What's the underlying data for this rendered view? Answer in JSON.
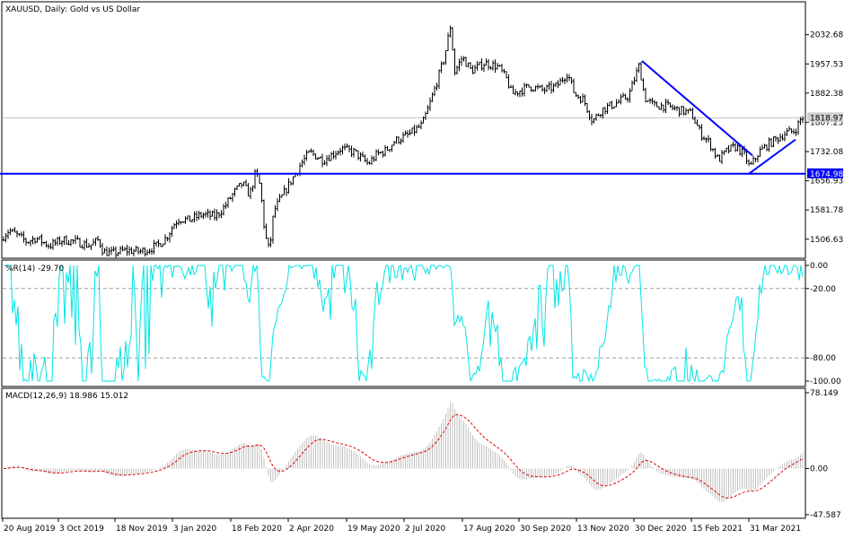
{
  "chart_data": [
    {
      "type": "bar",
      "subtype": "ohlc",
      "title": "XAUUSD, Daily:  Gold vs US Dollar",
      "ylim": [
        1460,
        2115
      ],
      "price_ticks": [
        "2032.68",
        "1957.53",
        "1882.38",
        "1807.23",
        "1732.08",
        "1656.93",
        "1581.78",
        "1506.63"
      ],
      "current_price": "1818.97",
      "support_level": "1674.98",
      "x_labels": [
        "20 Aug 2019",
        "3 Oct 2019",
        "18 Nov 2019",
        "3 Jan 2020",
        "18 Feb 2020",
        "2 Apr 2020",
        "19 May 2020",
        "2 Jul 2020",
        "17 Aug 2020",
        "30 Sep 2020",
        "13 Nov 2020",
        "30 Dec 2020",
        "15 Feb 2021",
        "31 Mar 2021"
      ],
      "close_path": [
        [
          0,
          1505
        ],
        [
          10,
          1530
        ],
        [
          20,
          1515
        ],
        [
          30,
          1500
        ],
        [
          40,
          1510
        ],
        [
          55,
          1490
        ],
        [
          70,
          1505
        ],
        [
          85,
          1500
        ],
        [
          100,
          1490
        ],
        [
          110,
          1505
        ],
        [
          115,
          1475
        ],
        [
          125,
          1470
        ],
        [
          140,
          1478
        ],
        [
          155,
          1475
        ],
        [
          165,
          1480
        ],
        [
          175,
          1490
        ],
        [
          185,
          1510
        ],
        [
          195,
          1550
        ],
        [
          200,
          1560
        ],
        [
          210,
          1555
        ],
        [
          225,
          1570
        ],
        [
          240,
          1565
        ],
        [
          250,
          1590
        ],
        [
          260,
          1625
        ],
        [
          270,
          1650
        ],
        [
          278,
          1620
        ],
        [
          285,
          1680
        ],
        [
          290,
          1640
        ],
        [
          295,
          1520
        ],
        [
          300,
          1475
        ],
        [
          305,
          1580
        ],
        [
          315,
          1620
        ],
        [
          325,
          1660
        ],
        [
          335,
          1700
        ],
        [
          345,
          1730
        ],
        [
          360,
          1710
        ],
        [
          380,
          1740
        ],
        [
          395,
          1730
        ],
        [
          410,
          1700
        ],
        [
          420,
          1725
        ],
        [
          430,
          1735
        ],
        [
          440,
          1760
        ],
        [
          455,
          1775
        ],
        [
          470,
          1800
        ],
        [
          478,
          1850
        ],
        [
          485,
          1900
        ],
        [
          495,
          1975
        ],
        [
          502,
          2060
        ],
        [
          506,
          1935
        ],
        [
          515,
          1975
        ],
        [
          525,
          1940
        ],
        [
          540,
          1960
        ],
        [
          555,
          1950
        ],
        [
          565,
          1915
        ],
        [
          570,
          1880
        ],
        [
          580,
          1890
        ],
        [
          590,
          1900
        ],
        [
          605,
          1890
        ],
        [
          620,
          1900
        ],
        [
          632,
          1935
        ],
        [
          640,
          1880
        ],
        [
          650,
          1865
        ],
        [
          660,
          1810
        ],
        [
          670,
          1840
        ],
        [
          685,
          1855
        ],
        [
          700,
          1875
        ],
        [
          712,
          1955
        ],
        [
          718,
          1870
        ],
        [
          728,
          1850
        ],
        [
          740,
          1850
        ],
        [
          755,
          1840
        ],
        [
          770,
          1830
        ],
        [
          780,
          1780
        ],
        [
          790,
          1755
        ],
        [
          800,
          1710
        ],
        [
          810,
          1735
        ],
        [
          820,
          1745
        ],
        [
          830,
          1720
        ],
        [
          835,
          1690
        ],
        [
          845,
          1730
        ],
        [
          855,
          1750
        ],
        [
          865,
          1765
        ],
        [
          875,
          1780
        ],
        [
          885,
          1785
        ],
        [
          893,
          1820
        ]
      ],
      "trendlines": [
        {
          "name": "descending",
          "from": [
            715,
            1965
          ],
          "to": [
            838,
            1722
          ],
          "color": "#0000ff"
        },
        {
          "name": "ascending",
          "from": [
            834,
            1675
          ],
          "to": [
            886,
            1763
          ],
          "color": "#0000ff"
        },
        {
          "name": "horizontal",
          "from": [
            0,
            1674.98
          ],
          "to": [
            897,
            1674.98
          ],
          "color": "#0000ff"
        }
      ]
    },
    {
      "type": "line",
      "title": "%R(14) -29.70",
      "ylim": [
        -100,
        0
      ],
      "ticks": [
        "0.00",
        "-20.00",
        "-80.00",
        "-100.00"
      ],
      "levels": [
        -20,
        -80
      ],
      "line_color": "#00e5e5"
    },
    {
      "type": "bar",
      "title": "MACD(12,26,9) 18.986 15.012",
      "ylim": [
        -47.587,
        78.149
      ],
      "ticks": [
        "78.149",
        "0.00",
        "-47.587"
      ],
      "histogram_color": "#c0c0c0",
      "signal_color": "#e00000"
    }
  ]
}
